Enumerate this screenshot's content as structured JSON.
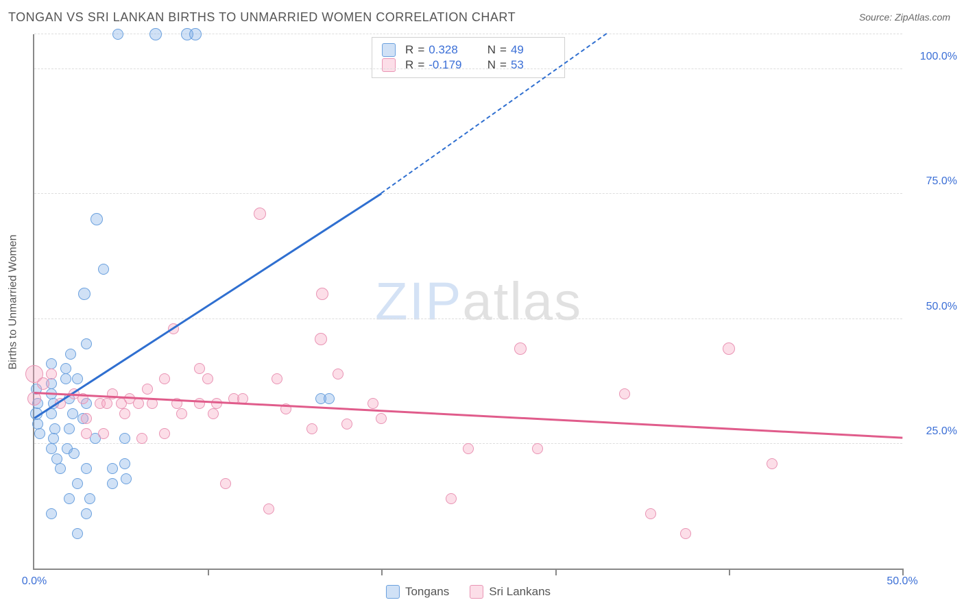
{
  "title": "TONGAN VS SRI LANKAN BIRTHS TO UNMARRIED WOMEN CORRELATION CHART",
  "source_label": "Source: ",
  "source_name": "ZipAtlas.com",
  "ylabel": "Births to Unmarried Women",
  "watermark_a": "ZIP",
  "watermark_b": "atlas",
  "chart": {
    "type": "scatter",
    "background_color": "#ffffff",
    "grid_color": "#dddddd",
    "axis_color": "#888888",
    "label_color": "#3b6fd6",
    "xlim": [
      0,
      50
    ],
    "ylim": [
      0,
      107
    ],
    "y_gridlines": [
      25,
      50,
      75,
      100,
      107
    ],
    "y_labels": [
      {
        "v": 25,
        "t": "25.0%"
      },
      {
        "v": 50,
        "t": "50.0%"
      },
      {
        "v": 75,
        "t": "75.0%"
      },
      {
        "v": 100,
        "t": "100.0%"
      }
    ],
    "x_ticks": [
      10,
      20,
      30,
      40,
      50
    ],
    "x_labels": [
      {
        "v": 0,
        "t": "0.0%"
      },
      {
        "v": 50,
        "t": "50.0%"
      }
    ],
    "series": [
      {
        "name": "Tongans",
        "fill": "rgba(120,170,230,0.35)",
        "stroke": "#6aa0de",
        "line_color": "#2f6fd0",
        "R": "0.328",
        "N": "49",
        "trend": {
          "x1": 0,
          "y1": 30,
          "x2": 20,
          "y2": 75,
          "dash_to_x": 33,
          "dash_to_y": 107
        },
        "points": [
          {
            "x": 4.8,
            "y": 107,
            "r": 8
          },
          {
            "x": 7.0,
            "y": 107,
            "r": 9
          },
          {
            "x": 8.8,
            "y": 107,
            "r": 9
          },
          {
            "x": 9.3,
            "y": 107,
            "r": 9
          },
          {
            "x": 3.6,
            "y": 70,
            "r": 9
          },
          {
            "x": 4.0,
            "y": 60,
            "r": 8
          },
          {
            "x": 2.9,
            "y": 55,
            "r": 9
          },
          {
            "x": 2.1,
            "y": 43,
            "r": 8
          },
          {
            "x": 3.0,
            "y": 45,
            "r": 8
          },
          {
            "x": 1.0,
            "y": 41,
            "r": 8
          },
          {
            "x": 1.0,
            "y": 37,
            "r": 8
          },
          {
            "x": 1.8,
            "y": 40,
            "r": 8
          },
          {
            "x": 1.8,
            "y": 38,
            "r": 8
          },
          {
            "x": 2.5,
            "y": 38,
            "r": 8
          },
          {
            "x": 0.1,
            "y": 36,
            "r": 8
          },
          {
            "x": 0.2,
            "y": 33,
            "r": 8
          },
          {
            "x": 0.1,
            "y": 31,
            "r": 9
          },
          {
            "x": 0.2,
            "y": 29,
            "r": 8
          },
          {
            "x": 0.3,
            "y": 27,
            "r": 8
          },
          {
            "x": 1.0,
            "y": 35,
            "r": 8
          },
          {
            "x": 1.1,
            "y": 33,
            "r": 8
          },
          {
            "x": 1.0,
            "y": 31,
            "r": 8
          },
          {
            "x": 1.2,
            "y": 28,
            "r": 8
          },
          {
            "x": 1.1,
            "y": 26,
            "r": 8
          },
          {
            "x": 2.0,
            "y": 34,
            "r": 8
          },
          {
            "x": 2.2,
            "y": 31,
            "r": 8
          },
          {
            "x": 2.0,
            "y": 28,
            "r": 8
          },
          {
            "x": 2.8,
            "y": 30,
            "r": 8
          },
          {
            "x": 3.0,
            "y": 33,
            "r": 8
          },
          {
            "x": 3.5,
            "y": 26,
            "r": 8
          },
          {
            "x": 5.2,
            "y": 26,
            "r": 8
          },
          {
            "x": 1.0,
            "y": 24,
            "r": 8
          },
          {
            "x": 1.9,
            "y": 24,
            "r": 8
          },
          {
            "x": 2.3,
            "y": 23,
            "r": 8
          },
          {
            "x": 1.3,
            "y": 22,
            "r": 8
          },
          {
            "x": 1.5,
            "y": 20,
            "r": 8
          },
          {
            "x": 3.0,
            "y": 20,
            "r": 8
          },
          {
            "x": 4.5,
            "y": 20,
            "r": 8
          },
          {
            "x": 5.2,
            "y": 21,
            "r": 8
          },
          {
            "x": 2.5,
            "y": 17,
            "r": 8
          },
          {
            "x": 4.5,
            "y": 17,
            "r": 8
          },
          {
            "x": 5.3,
            "y": 18,
            "r": 8
          },
          {
            "x": 2.0,
            "y": 14,
            "r": 8
          },
          {
            "x": 3.2,
            "y": 14,
            "r": 8
          },
          {
            "x": 1.0,
            "y": 11,
            "r": 8
          },
          {
            "x": 3.0,
            "y": 11,
            "r": 8
          },
          {
            "x": 2.5,
            "y": 7,
            "r": 8
          },
          {
            "x": 16.5,
            "y": 34,
            "r": 8
          },
          {
            "x": 17.0,
            "y": 34,
            "r": 8
          }
        ]
      },
      {
        "name": "Sri Lankans",
        "fill": "rgba(245,160,190,0.35)",
        "stroke": "#e994b4",
        "line_color": "#e05c8b",
        "R": "-0.179",
        "N": "53",
        "trend": {
          "x1": 0,
          "y1": 35,
          "x2": 50,
          "y2": 26
        },
        "points": [
          {
            "x": 0.0,
            "y": 39,
            "r": 13
          },
          {
            "x": 0.0,
            "y": 34,
            "r": 10
          },
          {
            "x": 0.5,
            "y": 37,
            "r": 9
          },
          {
            "x": 1.0,
            "y": 39,
            "r": 8
          },
          {
            "x": 1.5,
            "y": 33,
            "r": 8
          },
          {
            "x": 2.3,
            "y": 35,
            "r": 8
          },
          {
            "x": 2.8,
            "y": 34,
            "r": 8
          },
          {
            "x": 3.0,
            "y": 27,
            "r": 8
          },
          {
            "x": 3.8,
            "y": 33,
            "r": 8
          },
          {
            "x": 3.0,
            "y": 30,
            "r": 8
          },
          {
            "x": 4.0,
            "y": 27,
            "r": 8
          },
          {
            "x": 4.2,
            "y": 33,
            "r": 8
          },
          {
            "x": 4.5,
            "y": 35,
            "r": 8
          },
          {
            "x": 5.0,
            "y": 33,
            "r": 8
          },
          {
            "x": 5.2,
            "y": 31,
            "r": 8
          },
          {
            "x": 5.5,
            "y": 34,
            "r": 8
          },
          {
            "x": 6.0,
            "y": 33,
            "r": 8
          },
          {
            "x": 6.5,
            "y": 36,
            "r": 8
          },
          {
            "x": 6.8,
            "y": 33,
            "r": 8
          },
          {
            "x": 6.2,
            "y": 26,
            "r": 8
          },
          {
            "x": 7.5,
            "y": 38,
            "r": 8
          },
          {
            "x": 7.5,
            "y": 27,
            "r": 8
          },
          {
            "x": 8.0,
            "y": 48,
            "r": 8
          },
          {
            "x": 8.2,
            "y": 33,
            "r": 8
          },
          {
            "x": 8.5,
            "y": 31,
            "r": 8
          },
          {
            "x": 9.5,
            "y": 40,
            "r": 8
          },
          {
            "x": 9.5,
            "y": 33,
            "r": 8
          },
          {
            "x": 10.0,
            "y": 38,
            "r": 8
          },
          {
            "x": 10.3,
            "y": 31,
            "r": 8
          },
          {
            "x": 10.5,
            "y": 33,
            "r": 8
          },
          {
            "x": 11.5,
            "y": 34,
            "r": 8
          },
          {
            "x": 11.0,
            "y": 17,
            "r": 8
          },
          {
            "x": 12.0,
            "y": 34,
            "r": 8
          },
          {
            "x": 13.0,
            "y": 71,
            "r": 9
          },
          {
            "x": 13.5,
            "y": 12,
            "r": 8
          },
          {
            "x": 14.0,
            "y": 38,
            "r": 8
          },
          {
            "x": 14.5,
            "y": 32,
            "r": 8
          },
          {
            "x": 16.0,
            "y": 28,
            "r": 8
          },
          {
            "x": 16.5,
            "y": 46,
            "r": 9
          },
          {
            "x": 16.6,
            "y": 55,
            "r": 9
          },
          {
            "x": 17.5,
            "y": 39,
            "r": 8
          },
          {
            "x": 18.0,
            "y": 29,
            "r": 8
          },
          {
            "x": 19.5,
            "y": 33,
            "r": 8
          },
          {
            "x": 20.0,
            "y": 30,
            "r": 8
          },
          {
            "x": 24.0,
            "y": 14,
            "r": 8
          },
          {
            "x": 25.0,
            "y": 24,
            "r": 8
          },
          {
            "x": 28.0,
            "y": 44,
            "r": 9
          },
          {
            "x": 29.0,
            "y": 24,
            "r": 8
          },
          {
            "x": 34.0,
            "y": 35,
            "r": 8
          },
          {
            "x": 35.5,
            "y": 11,
            "r": 8
          },
          {
            "x": 37.5,
            "y": 7,
            "r": 8
          },
          {
            "x": 40.0,
            "y": 44,
            "r": 9
          },
          {
            "x": 42.5,
            "y": 21,
            "r": 8
          }
        ]
      }
    ]
  },
  "legend": {
    "r_label": "R",
    "n_label": "N",
    "eq": " =  "
  }
}
